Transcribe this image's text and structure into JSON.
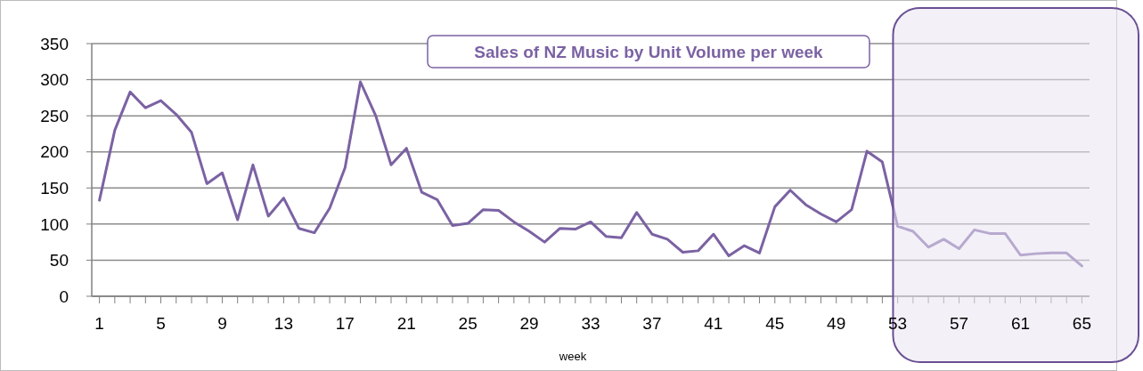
{
  "chart_data": {
    "type": "line",
    "title": "Sales of NZ Music by Unit Volume per week",
    "xlabel": "week",
    "x": [
      1,
      2,
      3,
      4,
      5,
      6,
      7,
      8,
      9,
      10,
      11,
      12,
      13,
      14,
      15,
      16,
      17,
      18,
      19,
      20,
      21,
      22,
      23,
      24,
      25,
      26,
      27,
      28,
      29,
      30,
      31,
      32,
      33,
      34,
      35,
      36,
      37,
      38,
      39,
      40,
      41,
      42,
      43,
      44,
      45,
      46,
      47,
      48,
      49,
      50,
      51,
      52,
      53,
      54,
      55,
      56,
      57,
      58,
      59,
      60,
      61,
      62,
      63,
      64,
      65
    ],
    "series": [
      {
        "color": "#7b62a3",
        "values": [
          133,
          230,
          283,
          261,
          271,
          252,
          227,
          156,
          171,
          106,
          182,
          111,
          136,
          94,
          88,
          122,
          178,
          297,
          250,
          182,
          205,
          144,
          134,
          98,
          101,
          120,
          119,
          103,
          90,
          75,
          94,
          93,
          103,
          83,
          81,
          116,
          86,
          79,
          61,
          63,
          86,
          56,
          70,
          60,
          124,
          147,
          127,
          114,
          103,
          120,
          201,
          186,
          97,
          90,
          68,
          79,
          66,
          92,
          87,
          87,
          57,
          59,
          60,
          60,
          42
        ]
      }
    ],
    "xlim": [
      0.5,
      65.5
    ],
    "xticks": [
      1,
      5,
      9,
      13,
      17,
      21,
      25,
      29,
      33,
      37,
      41,
      45,
      49,
      53,
      57,
      61,
      65
    ],
    "ylim": [
      0,
      350
    ],
    "yticks": [
      0,
      50,
      100,
      150,
      200,
      250,
      300,
      350
    ],
    "grid": "y",
    "marker": "none",
    "line_style": "solid",
    "bands": [
      {
        "axis": "x",
        "from": 52.7,
        "to": 65.5,
        "color": "#e9e4f2"
      }
    ]
  }
}
